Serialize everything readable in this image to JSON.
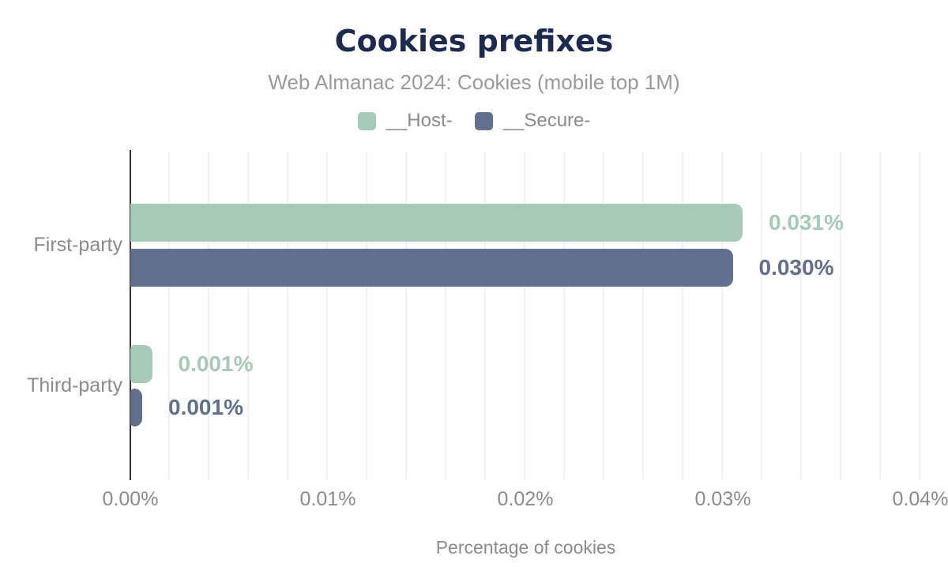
{
  "header": {
    "title": "Cookies prefixes",
    "subtitle": "Web Almanac 2024: Cookies (mobile top 1M)"
  },
  "legend": {
    "items": [
      {
        "label": "__Host-",
        "color": "#a7cab8"
      },
      {
        "label": "__Secure-",
        "color": "#61708e"
      }
    ]
  },
  "chart_data": {
    "type": "bar",
    "orientation": "horizontal",
    "title": "Cookies prefixes",
    "subtitle": "Web Almanac 2024: Cookies (mobile top 1M)",
    "categories": [
      "First-party",
      "Third-party"
    ],
    "series": [
      {
        "name": "__Host-",
        "color": "#a7cab8",
        "values": [
          0.031,
          0.0011
        ],
        "labels": [
          "0.031%",
          "0.001%"
        ]
      },
      {
        "name": "__Secure-",
        "color": "#61708e",
        "values": [
          0.0305,
          0.0006
        ],
        "labels": [
          "0.030%",
          "0.001%"
        ]
      }
    ],
    "xlabel": "Percentage of cookies",
    "x_ticks": [
      "0.00%",
      "0.01%",
      "0.02%",
      "0.03%",
      "0.04%"
    ],
    "xlim": [
      0,
      0.04
    ],
    "grid": "vertical minor gridlines every 0.002%",
    "legend_position": "top"
  },
  "colors": {
    "background": "#ffffff",
    "title_navy": "#1b2a4e",
    "subtitle_gray": "#9a9a9a",
    "axis_text_gray": "#8b8b8b",
    "axis_line": "#333333",
    "gridline": "#f1f1f1",
    "host_green": "#a7cab8",
    "secure_slate": "#61708e"
  }
}
